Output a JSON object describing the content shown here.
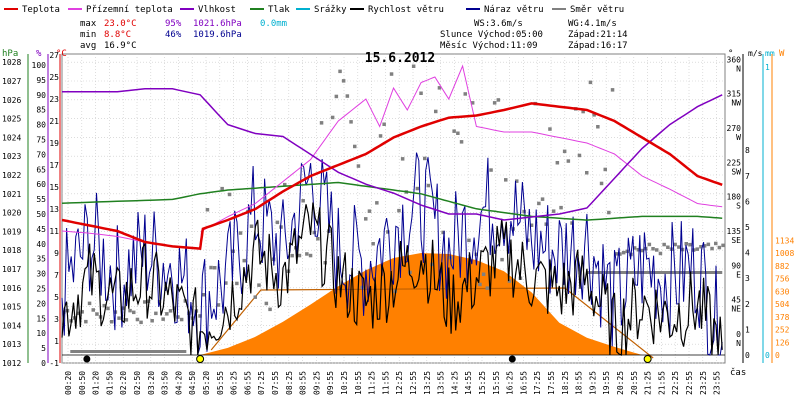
{
  "legend": [
    {
      "label": "Teplota",
      "color": "#e00000"
    },
    {
      "label": "Přízemní teplota",
      "color": "#e040e0"
    },
    {
      "label": "Vlhkost",
      "color": "#8000c0"
    },
    {
      "label": "Tlak",
      "color": "#208020"
    },
    {
      "label": "Srážky",
      "color": "#00b0d0"
    },
    {
      "label": "Rychlost větru",
      "color": "#000000"
    },
    {
      "label": "Náraz větru",
      "color": "#000090"
    },
    {
      "label": "Směr větru",
      "color": "#808080"
    }
  ],
  "stats": {
    "max_label": "max",
    "max_temp": "23.0°C",
    "max_hum": "95%",
    "max_press": "1021.6hPa",
    "max_rain": "0.0mm",
    "min_label": "min",
    "min_temp": "8.8°C",
    "min_hum": "46%",
    "min_press": "1019.6hPa",
    "avg_label": "avg",
    "avg_temp": "16.9°C",
    "ws": "WS:3.6m/s",
    "wg": "WG:4.1m/s",
    "sun_rise": "Slunce Východ:05:00",
    "sun_set": "Západ:21:14",
    "moon_rise": "Měsíc  Východ:11:09",
    "moon_set": "Západ:16:17"
  },
  "colors": {
    "temp": "#e00000",
    "ground": "#e040e0",
    "hum": "#8000c0",
    "press": "#208020",
    "rain": "#00b0d0",
    "wind": "#000000",
    "gust": "#000090",
    "dir": "#808080",
    "solar": "#ff8000",
    "uv": "#ff8000",
    "grid": "#c8c8c8"
  },
  "chart_data": {
    "type": "line",
    "title": "15.6.2012",
    "x_axis_label": "čas",
    "x_ticks": [
      "00:20",
      "00:50",
      "01:20",
      "01:50",
      "02:20",
      "02:50",
      "03:20",
      "03:50",
      "04:20",
      "04:50",
      "05:20",
      "05:55",
      "06:25",
      "06:55",
      "07:25",
      "07:55",
      "08:25",
      "08:55",
      "09:25",
      "09:55",
      "10:25",
      "10:55",
      "11:25",
      "11:55",
      "12:25",
      "12:55",
      "13:25",
      "13:55",
      "14:25",
      "14:55",
      "15:25",
      "15:55",
      "16:25",
      "16:55",
      "17:25",
      "17:55",
      "18:25",
      "18:55",
      "19:25",
      "19:55",
      "20:25",
      "20:55",
      "21:25",
      "21:55",
      "22:25",
      "22:55",
      "23:25",
      "23:55"
    ],
    "axes": {
      "pressure": {
        "label": "hPa",
        "ticks": [
          "1012",
          "1013",
          "1014",
          "1015",
          "1016",
          "1017",
          "1018",
          "1019",
          "1020",
          "1021",
          "1022",
          "1023",
          "1024",
          "1025",
          "1026",
          "1027",
          "1028"
        ]
      },
      "humidity": {
        "label": "%",
        "ticks": [
          "0",
          "5",
          "10",
          "15",
          "20",
          "25",
          "30",
          "35",
          "40",
          "45",
          "50",
          "55",
          "60",
          "65",
          "70",
          "75",
          "80",
          "85",
          "90",
          "95",
          "100"
        ]
      },
      "temperature": {
        "label": "°C",
        "ticks": [
          "-1",
          "1",
          "3",
          "5",
          "7",
          "9",
          "11",
          "13",
          "15",
          "17",
          "19",
          "21",
          "23",
          "25",
          "27"
        ]
      },
      "direction": {
        "label": "°",
        "ticks": [
          {
            "v": "0",
            "d": "N"
          },
          {
            "v": "45",
            "d": "NE"
          },
          {
            "v": "90",
            "d": "E"
          },
          {
            "v": "135",
            "d": "SE"
          },
          {
            "v": "180",
            "d": "S"
          },
          {
            "v": "225",
            "d": "SW"
          },
          {
            "v": "270",
            "d": "W"
          },
          {
            "v": "315",
            "d": "NW"
          },
          {
            "v": "360",
            "d": "N"
          }
        ]
      },
      "wind": {
        "label": "m/s",
        "ticks": [
          "0",
          "1",
          "2",
          "3",
          "4",
          "5",
          "6",
          "7",
          "8"
        ]
      },
      "rain": {
        "label": "mm",
        "ticks": [
          "0",
          "1"
        ]
      },
      "solar": {
        "label": "W",
        "ticks": [
          "0",
          "126",
          "252",
          "378",
          "504",
          "630",
          "756",
          "882",
          "1008",
          "1134"
        ]
      }
    },
    "series": [
      {
        "name": "Teplota",
        "axis": "temperature",
        "x": [
          0,
          1,
          2,
          2.5,
          3,
          4,
          5,
          5.1,
          6,
          7,
          8,
          9,
          10,
          11,
          12,
          13,
          14,
          15,
          16,
          17,
          18,
          19,
          20,
          21,
          22,
          23,
          23.9
        ],
        "y": [
          12.0,
          11.5,
          11.0,
          10.5,
          10.0,
          9.6,
          9.4,
          11.2,
          12.0,
          13.0,
          14.6,
          16.0,
          17.0,
          18.0,
          19.5,
          20.5,
          21.3,
          21.5,
          22.0,
          22.6,
          22.3,
          22.0,
          21.0,
          19.5,
          18.0,
          16.0,
          15.2
        ]
      },
      {
        "name": "Přízemní teplota",
        "axis": "temperature",
        "x": [
          0,
          1,
          2,
          3,
          4,
          5,
          5.05,
          5.5,
          6,
          7,
          8,
          9,
          10,
          11,
          11.5,
          12,
          12.5,
          13,
          13.5,
          14,
          14.5,
          15,
          16,
          17,
          18,
          19,
          20,
          21,
          22,
          23,
          23.9
        ],
        "y": [
          11.0,
          10.8,
          10.5,
          10.0,
          9.6,
          9.4,
          11.0,
          11.6,
          12.3,
          13.5,
          15.5,
          17.5,
          21.0,
          23.0,
          20.5,
          24.0,
          22.0,
          24.5,
          25.0,
          23.0,
          26.0,
          20.5,
          20.0,
          20.0,
          19.5,
          19.0,
          18.0,
          16.0,
          14.8,
          13.5,
          13.2
        ]
      },
      {
        "name": "Vlhkost",
        "axis": "humidity",
        "x": [
          0,
          1,
          2,
          3,
          4,
          5,
          6,
          7,
          8,
          9,
          10,
          11,
          12,
          13,
          14,
          15,
          16,
          17,
          18,
          19,
          20,
          21,
          22,
          23,
          23.9
        ],
        "y": [
          91,
          91,
          91,
          92,
          92,
          90,
          80,
          77,
          76,
          70,
          64,
          60,
          57,
          53,
          50,
          50,
          48,
          49,
          50,
          52,
          62,
          72,
          80,
          86,
          90
        ]
      },
      {
        "name": "Tlak",
        "axis": "pressure",
        "x": [
          0,
          2,
          4,
          5,
          6,
          7,
          8,
          9,
          10,
          11,
          12,
          13,
          14,
          15,
          16,
          17,
          18,
          19,
          20,
          21,
          22,
          23,
          23.9
        ],
        "y": [
          1020.5,
          1020.6,
          1020.7,
          1021.0,
          1021.2,
          1021.3,
          1021.4,
          1021.5,
          1021.6,
          1021.4,
          1021.2,
          1021.0,
          1020.6,
          1020.2,
          1020.0,
          1019.8,
          1019.7,
          1019.6,
          1019.7,
          1019.8,
          1019.8,
          1019.8,
          1019.7
        ]
      },
      {
        "name": "Rychlost větru",
        "axis": "wind",
        "x": [
          0,
          1,
          2,
          3,
          4,
          5,
          6,
          7,
          8,
          9,
          10,
          11,
          12,
          13,
          14,
          15,
          16,
          17,
          18,
          19,
          20,
          21,
          22,
          23,
          23.9
        ],
        "y": [
          1.5,
          3.0,
          2.0,
          3.0,
          2.0,
          1.0,
          2.0,
          4.0,
          3.0,
          5.0,
          3.0,
          2.0,
          3.0,
          4.0,
          2.0,
          3.0,
          4.0,
          3.0,
          2.5,
          3.0,
          1.0,
          2.0,
          1.5,
          2.0,
          0.2
        ]
      },
      {
        "name": "Náraz větru",
        "axis": "wind",
        "x": [
          0,
          1,
          2,
          3,
          4,
          5,
          6,
          7,
          8,
          9,
          10,
          11,
          12,
          13,
          14,
          15,
          16,
          17,
          18,
          19,
          20,
          21,
          22,
          23,
          23.9
        ],
        "y": [
          2.5,
          4.5,
          3.0,
          4.0,
          3.5,
          2.0,
          3.0,
          5.5,
          4.0,
          7.0,
          4.0,
          3.5,
          5.0,
          6.0,
          4.0,
          5.5,
          6.0,
          4.5,
          4.0,
          4.5,
          2.0,
          3.5,
          3.0,
          3.5,
          0.5
        ]
      },
      {
        "name": "Solar",
        "axis": "solar",
        "x": [
          5.0,
          6,
          7,
          8,
          9,
          10,
          11,
          12,
          13,
          14,
          15,
          16,
          17,
          18,
          19,
          20,
          21,
          21.2
        ],
        "y": [
          0,
          70,
          180,
          330,
          500,
          680,
          840,
          960,
          1010,
          1000,
          940,
          830,
          620,
          320,
          170,
          80,
          0,
          0
        ]
      }
    ]
  }
}
